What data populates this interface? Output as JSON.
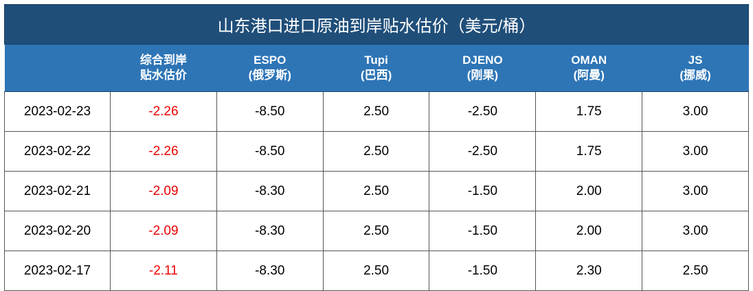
{
  "title": "山东港口进口原油到岸贴水估价（美元/桶）",
  "header": [
    [
      "综合到岸",
      "贴水估价"
    ],
    [
      "ESPO",
      "(俄罗斯)"
    ],
    [
      "Tupi",
      "(巴西)"
    ],
    [
      "DJENO",
      "(刚果)"
    ],
    [
      "OMAN",
      "(阿曼)"
    ],
    [
      "JS",
      "(挪威)"
    ]
  ],
  "rows": [
    [
      "2023-02-23",
      "-2.26",
      "-8.50",
      "2.50",
      "-2.50",
      "1.75",
      "3.00"
    ],
    [
      "2023-02-22",
      "-2.26",
      "-8.50",
      "2.50",
      "-2.50",
      "1.75",
      "3.00"
    ],
    [
      "2023-02-21",
      "-2.09",
      "-8.30",
      "2.50",
      "-1.50",
      "2.00",
      "3.00"
    ],
    [
      "2023-02-20",
      "-2.09",
      "-8.30",
      "2.50",
      "-1.50",
      "2.00",
      "3.00"
    ],
    [
      "2023-02-17",
      "-2.11",
      "-8.30",
      "2.50",
      "-1.50",
      "2.30",
      "2.50"
    ]
  ]
}
